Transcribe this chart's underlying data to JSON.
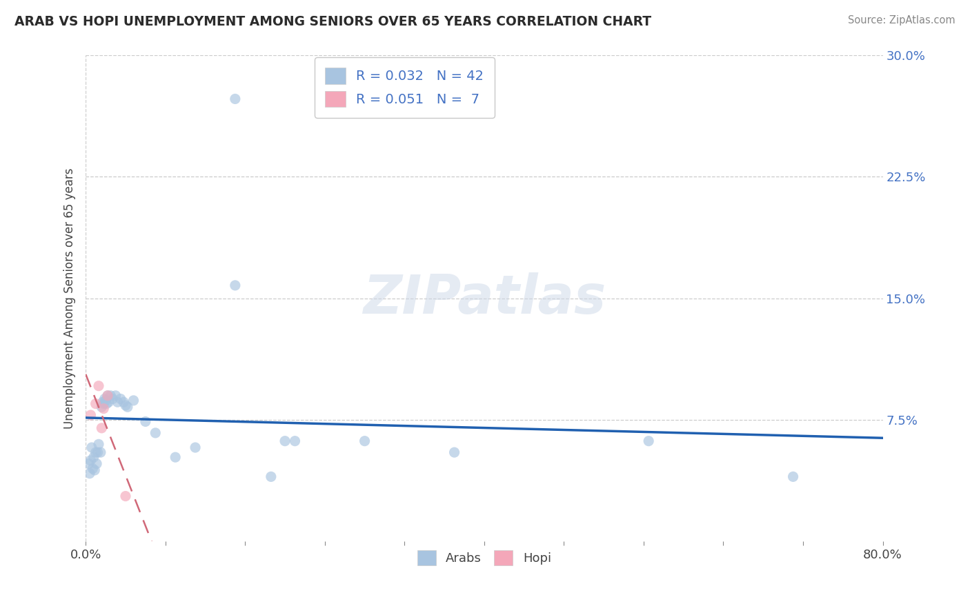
{
  "title": "ARAB VS HOPI UNEMPLOYMENT AMONG SENIORS OVER 65 YEARS CORRELATION CHART",
  "source": "Source: ZipAtlas.com",
  "ylabel": "Unemployment Among Seniors over 65 years",
  "xlim": [
    0.0,
    0.8
  ],
  "ylim": [
    0.0,
    0.3
  ],
  "xtick_positions": [
    0.0,
    0.08,
    0.16,
    0.24,
    0.32,
    0.4,
    0.48,
    0.56,
    0.64,
    0.72,
    0.8
  ],
  "xtick_labels_show": {
    "0.0": "0.0%",
    "0.80": "80.0%"
  },
  "ytick_positions": [
    0.075,
    0.15,
    0.225,
    0.3
  ],
  "yticklabels": [
    "7.5%",
    "15.0%",
    "22.5%",
    "30.0%"
  ],
  "arab_r": "0.032",
  "arab_n": "42",
  "hopi_r": "0.051",
  "hopi_n": "7",
  "arab_color": "#a8c4e0",
  "hopi_color": "#f4a7b9",
  "arab_line_color": "#2060b0",
  "hopi_line_color": "#d06878",
  "grid_color": "#cccccc",
  "watermark": "ZIPatlas",
  "arab_x": [
    0.004,
    0.005,
    0.006,
    0.007,
    0.008,
    0.009,
    0.01,
    0.011,
    0.012,
    0.013,
    0.014,
    0.015,
    0.016,
    0.017,
    0.018,
    0.019,
    0.02,
    0.022,
    0.023,
    0.024,
    0.025,
    0.026,
    0.028,
    0.03,
    0.032,
    0.034,
    0.036,
    0.038,
    0.042,
    0.05,
    0.06,
    0.07,
    0.09,
    0.11,
    0.15,
    0.185,
    0.19,
    0.22,
    0.29,
    0.3,
    0.56,
    0.7
  ],
  "arab_y": [
    0.05,
    0.042,
    0.06,
    0.048,
    0.052,
    0.044,
    0.055,
    0.045,
    0.052,
    0.046,
    0.06,
    0.054,
    0.082,
    0.085,
    0.083,
    0.087,
    0.085,
    0.09,
    0.086,
    0.088,
    0.09,
    0.084,
    0.088,
    0.092,
    0.086,
    0.09,
    0.088,
    0.086,
    0.085,
    0.088,
    0.075,
    0.068,
    0.052,
    0.058,
    0.055,
    0.04,
    0.062,
    0.062,
    0.062,
    0.062,
    0.052,
    0.04
  ],
  "hopi_x": [
    0.005,
    0.01,
    0.012,
    0.016,
    0.018,
    0.02,
    0.04
  ],
  "hopi_y": [
    0.078,
    0.085,
    0.096,
    0.07,
    0.082,
    0.09,
    0.028
  ]
}
